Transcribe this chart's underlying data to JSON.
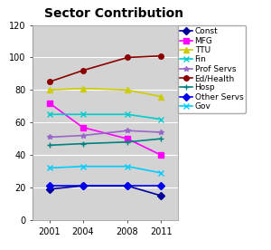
{
  "title": "Sector Contribution",
  "years": [
    2001,
    2004,
    2008,
    2011
  ],
  "series": [
    {
      "name": "Const",
      "values": [
        19,
        21,
        21,
        15
      ],
      "color": "#000099",
      "marker": "D"
    },
    {
      "name": "MFG",
      "values": [
        72,
        57,
        50,
        40
      ],
      "color": "#FF00FF",
      "marker": "s"
    },
    {
      "name": "TTU",
      "values": [
        80,
        81,
        80,
        76
      ],
      "color": "#CCCC00",
      "marker": "^"
    },
    {
      "name": "Fin",
      "values": [
        65,
        65,
        65,
        62
      ],
      "color": "#00CCCC",
      "marker": "x"
    },
    {
      "name": "Prof Servs",
      "values": [
        51,
        52,
        55,
        54
      ],
      "color": "#9966CC",
      "marker": "*"
    },
    {
      "name": "Ed/Health",
      "values": [
        85,
        92,
        100,
        101
      ],
      "color": "#8B0000",
      "marker": "o"
    },
    {
      "name": "Hosp",
      "values": [
        46,
        47,
        48,
        50
      ],
      "color": "#008080",
      "marker": "+"
    },
    {
      "name": "Other Servs",
      "values": [
        21,
        21,
        21,
        21
      ],
      "color": "#0000EE",
      "marker": "D"
    },
    {
      "name": "Gov",
      "values": [
        32,
        33,
        33,
        29
      ],
      "color": "#00CCFF",
      "marker": "x"
    }
  ],
  "xlim": [
    1999.5,
    2012.5
  ],
  "ylim": [
    0,
    120
  ],
  "yticks": [
    0,
    20,
    40,
    60,
    80,
    100,
    120
  ],
  "xticks": [
    2001,
    2004,
    2008,
    2011
  ],
  "plot_bg_color": "#D3D3D3",
  "outer_bg_color": "#FFFFFF",
  "grid_color": "#FFFFFF",
  "title_fontsize": 10,
  "tick_fontsize": 7,
  "legend_fontsize": 6.5,
  "linewidth": 1.2,
  "markersize": 4
}
